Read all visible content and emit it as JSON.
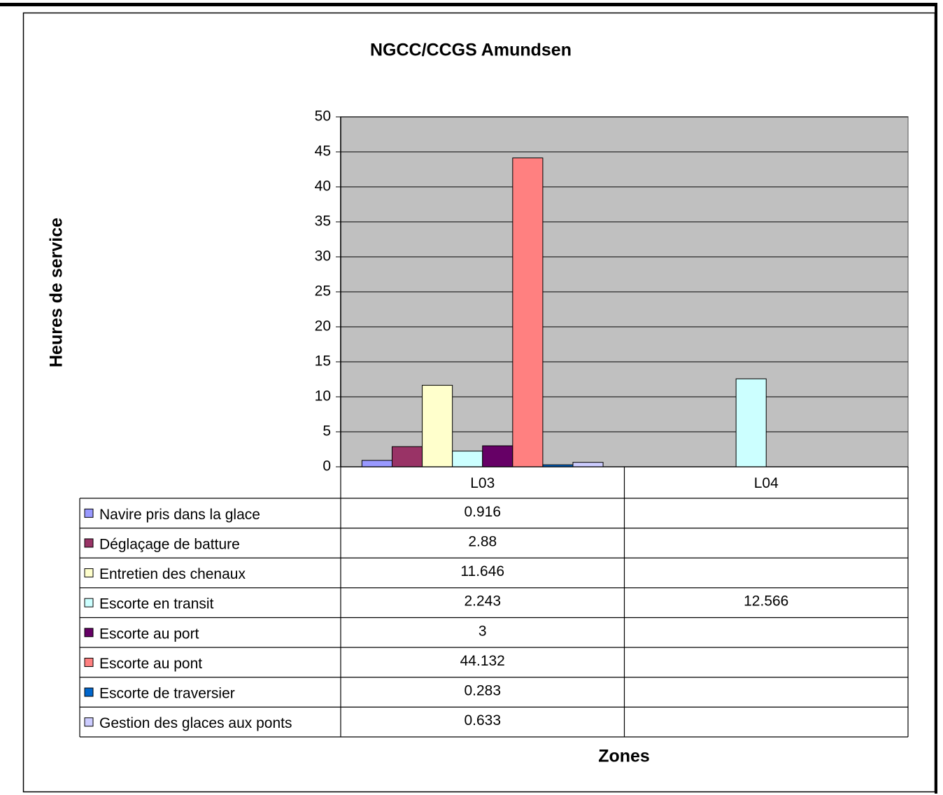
{
  "chart_data": {
    "type": "bar",
    "title": "NGCC/CCGS Amundsen",
    "y_label": "Heures de service",
    "x_label": "Zones",
    "categories": [
      "L03",
      "L04"
    ],
    "series": [
      {
        "name": "Navire pris dans la glace",
        "color": "#9999FF",
        "values": [
          0.916,
          null
        ]
      },
      {
        "name": "Déglaçage de batture",
        "color": "#993366",
        "values": [
          2.88,
          null
        ]
      },
      {
        "name": "Entretien des chenaux",
        "color": "#FFFFCC",
        "values": [
          11.646,
          null
        ]
      },
      {
        "name": "Escorte en transit",
        "color": "#CCFFFF",
        "values": [
          2.243,
          12.566
        ]
      },
      {
        "name": "Escorte au port",
        "color": "#660066",
        "values": [
          3,
          null
        ]
      },
      {
        "name": "Escorte au pont",
        "color": "#FF8080",
        "values": [
          44.132,
          null
        ]
      },
      {
        "name": "Escorte de traversier",
        "color": "#0066CC",
        "values": [
          0.283,
          null
        ]
      },
      {
        "name": "Gestion des glaces aux ponts",
        "color": "#CCCCFF",
        "values": [
          0.633,
          null
        ]
      }
    ],
    "ylim": [
      0,
      50
    ],
    "yticks": [
      0,
      5,
      10,
      15,
      20,
      25,
      30,
      35,
      40,
      45,
      50
    ],
    "grid": true,
    "plot_background": "#C0C0C0",
    "data_table": true
  }
}
